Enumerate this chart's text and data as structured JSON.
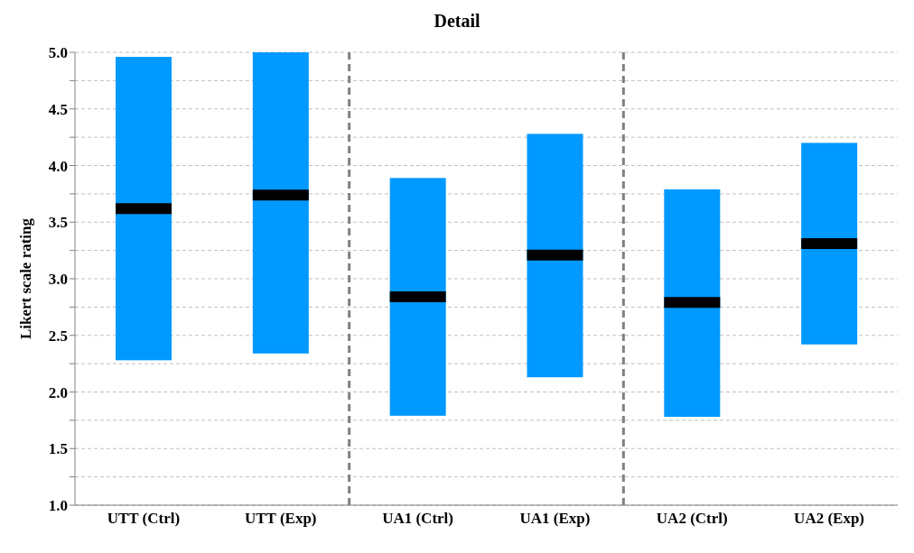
{
  "chart_data": {
    "type": "box",
    "title": "Detail",
    "ylabel": "Likert  scale rating",
    "categories": [
      "UTT (Ctrl)",
      "UTT (Exp)",
      "UA1 (Ctrl)",
      "UA1 (Exp)",
      "UA2 (Ctrl)",
      "UA2 (Exp)"
    ],
    "color": "#0099ff",
    "boxes": [
      {
        "low": 2.28,
        "q1": 2.28,
        "median": 3.62,
        "q3": 4.96,
        "high": 4.96
      },
      {
        "low": 2.34,
        "q1": 2.34,
        "median": 3.74,
        "q3": 5.0,
        "high": 5.0
      },
      {
        "low": 1.79,
        "q1": 1.79,
        "median": 2.84,
        "q3": 3.89,
        "high": 3.89
      },
      {
        "low": 2.13,
        "q1": 2.13,
        "median": 3.21,
        "q3": 4.28,
        "high": 4.28
      },
      {
        "low": 1.78,
        "q1": 1.78,
        "median": 2.79,
        "q3": 3.79,
        "high": 3.79
      },
      {
        "low": 2.42,
        "q1": 2.42,
        "median": 3.31,
        "q3": 4.2,
        "high": 4.2
      }
    ],
    "ylim": [
      1.0,
      5.0
    ],
    "yticks": [
      {
        "value": 1.0,
        "label": "1.0"
      },
      {
        "value": 1.25,
        "label": null
      },
      {
        "value": 1.5,
        "label": "1.5"
      },
      {
        "value": 1.75,
        "label": null
      },
      {
        "value": 2.0,
        "label": "2.0"
      },
      {
        "value": 2.25,
        "label": null
      },
      {
        "value": 2.5,
        "label": "2.5"
      },
      {
        "value": 2.75,
        "label": null
      },
      {
        "value": 3.0,
        "label": "3.0"
      },
      {
        "value": 3.25,
        "label": null
      },
      {
        "value": 3.5,
        "label": "3.5"
      },
      {
        "value": 3.75,
        "label": null
      },
      {
        "value": 4.0,
        "label": "4.0"
      },
      {
        "value": 4.25,
        "label": null
      },
      {
        "value": 4.5,
        "label": "4.5"
      },
      {
        "value": 4.75,
        "label": null
      },
      {
        "value": 5.0,
        "label": "5.0"
      }
    ],
    "grid": "y",
    "legend": false
  }
}
